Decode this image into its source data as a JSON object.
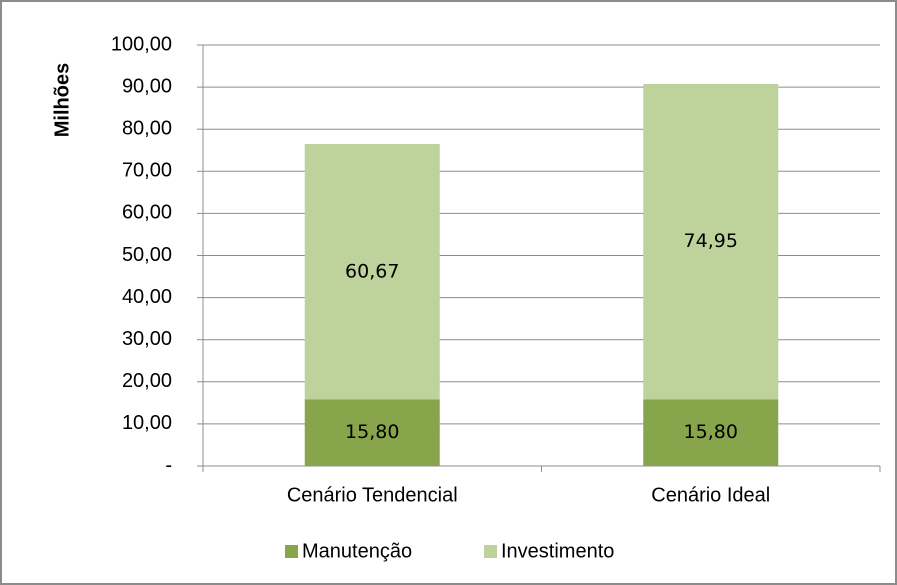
{
  "chart_data": {
    "type": "stacked_bar",
    "ylabel": "Milhões",
    "categories": [
      "Cenário Tendencial",
      "Cenário Ideal"
    ],
    "series": [
      {
        "name": "Manutenção",
        "color": "#87a54b",
        "values": [
          15.8,
          15.8
        ],
        "value_labels": [
          "15,80",
          "15,80"
        ]
      },
      {
        "name": "Investimento",
        "color": "#bdd39b",
        "values": [
          60.67,
          74.95
        ],
        "value_labels": [
          "60,67",
          "74,95"
        ]
      }
    ],
    "ylim": [
      0,
      100
    ],
    "yticks": [
      {
        "value": 0,
        "label": "-"
      },
      {
        "value": 10,
        "label": "10,00"
      },
      {
        "value": 20,
        "label": "20,00"
      },
      {
        "value": 30,
        "label": "30,00"
      },
      {
        "value": 40,
        "label": "40,00"
      },
      {
        "value": 50,
        "label": "50,00"
      },
      {
        "value": 60,
        "label": "60,00"
      },
      {
        "value": 70,
        "label": "70,00"
      },
      {
        "value": 80,
        "label": "80,00"
      },
      {
        "value": 90,
        "label": "90,00"
      },
      {
        "value": 100,
        "label": "100,00"
      }
    ],
    "grid": true,
    "legend": "bottom"
  }
}
